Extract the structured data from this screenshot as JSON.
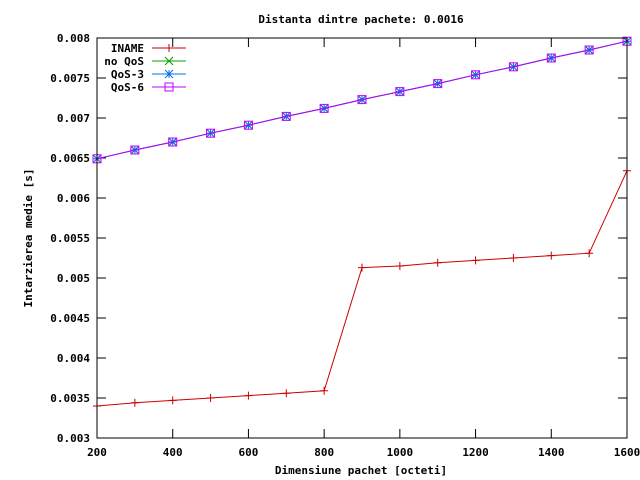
{
  "chart_data": {
    "type": "line",
    "title": "Distanta dintre pachete: 0.0016",
    "xlabel": "Dimensiune pachet [octeti]",
    "ylabel": "Intarzierea medie [s]",
    "xlim": [
      200,
      1600
    ],
    "ylim": [
      0.003,
      0.008
    ],
    "x_ticks": [
      "200",
      "400",
      "600",
      "800",
      "1000",
      "1200",
      "1400",
      "1600"
    ],
    "y_ticks": [
      "0.003",
      "0.0035",
      "0.004",
      "0.0045",
      "0.005",
      "0.0055",
      "0.006",
      "0.0065",
      "0.007",
      "0.0075",
      "0.008"
    ],
    "grid": false,
    "legend_position": "top-left",
    "x": [
      200,
      300,
      400,
      500,
      600,
      700,
      800,
      900,
      1000,
      1100,
      1200,
      1300,
      1400,
      1500,
      1600
    ],
    "series": [
      {
        "name": "INAME",
        "color": "#cc0000",
        "marker": "plus",
        "values": [
          0.0034,
          0.00344,
          0.00347,
          0.0035,
          0.00353,
          0.00356,
          0.00359,
          0.00513,
          0.00515,
          0.00519,
          0.00522,
          0.00525,
          0.00528,
          0.00531,
          0.00634
        ]
      },
      {
        "name": "no QoS",
        "color": "#00a000",
        "marker": "cross",
        "values": [
          0.00649,
          0.0066,
          0.0067,
          0.00681,
          0.00691,
          0.00702,
          0.00712,
          0.00723,
          0.00733,
          0.00743,
          0.00754,
          0.00764,
          0.00775,
          0.00785,
          0.00796
        ]
      },
      {
        "name": "QoS-3",
        "color": "#0070e0",
        "marker": "star",
        "values": [
          0.00649,
          0.0066,
          0.0067,
          0.00681,
          0.00691,
          0.00702,
          0.00712,
          0.00723,
          0.00733,
          0.00743,
          0.00754,
          0.00764,
          0.00775,
          0.00785,
          0.00796
        ]
      },
      {
        "name": "QoS-6",
        "color": "#c000ff",
        "marker": "square",
        "values": [
          0.00649,
          0.0066,
          0.0067,
          0.00681,
          0.00691,
          0.00702,
          0.00712,
          0.00723,
          0.00733,
          0.00743,
          0.00754,
          0.00764,
          0.00775,
          0.00785,
          0.00796
        ]
      }
    ]
  }
}
